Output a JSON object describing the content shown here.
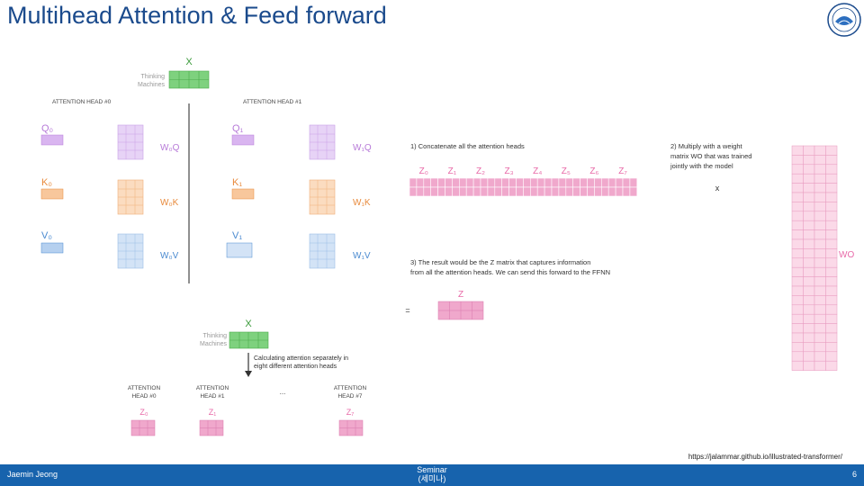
{
  "title": "Multihead Attention & Feed forward",
  "colors": {
    "title": "#1a4a8c",
    "footer": "#1763ad",
    "green": "#7ed17e",
    "pink": "#f0a8cc",
    "purple": "#d9b5f0",
    "orange": "#f8c79c",
    "blue": "#b5d0ef",
    "arrow": "#333333"
  },
  "top_block": {
    "x_label": "X",
    "input_lines": [
      "Thinking",
      "Machines"
    ],
    "head0_caption": "ATTENTION HEAD #0",
    "head1_caption": "ATTENTION HEAD #1",
    "head0": {
      "q": "Q₀",
      "k": "K₀",
      "v": "V₀",
      "wq": "W₀Q",
      "wk": "W₀K",
      "wv": "W₀V"
    },
    "head1": {
      "q": "Q₁",
      "k": "K₁",
      "v": "V₁",
      "wq": "W₁Q",
      "wk": "W₁K",
      "wv": "W₁V"
    }
  },
  "bottom_block": {
    "x_label": "X",
    "input_lines": [
      "Thinking",
      "Machines"
    ],
    "calc_lines": [
      "Calculating attention separately in",
      "eight different attention heads"
    ],
    "heads": [
      {
        "caption": [
          "ATTENTION",
          "HEAD #0"
        ],
        "z": "Z₀"
      },
      {
        "caption": [
          "ATTENTION",
          "HEAD #1"
        ],
        "z": "Z₁"
      },
      {
        "caption": [
          "ATTENTION",
          "HEAD #7"
        ],
        "z": "Z₇"
      }
    ],
    "ellipsis": "..."
  },
  "right_block": {
    "step1": "1) Concatenate all the attention heads",
    "z_labels": [
      "Z₀",
      "Z₁",
      "Z₂",
      "Z₃",
      "Z₄",
      "Z₅",
      "Z₆",
      "Z₇"
    ],
    "step2_lines": [
      "2) Multiply with a weight",
      "matrix WO that was trained",
      "jointly with the model"
    ],
    "times": "x",
    "wo_label": "WO",
    "step3_lines": [
      "3) The result would be the Z matrix that captures information",
      "from all the attention heads. We can send this forward to the FFNN"
    ],
    "z_label": "Z",
    "equals": "="
  },
  "footer": {
    "author": "Jaemin Jeong",
    "center_lines": [
      "Seminar",
      "(세미나)"
    ],
    "page": "6"
  },
  "source_url": "https://jalammar.github.io/illustrated-transformer/"
}
